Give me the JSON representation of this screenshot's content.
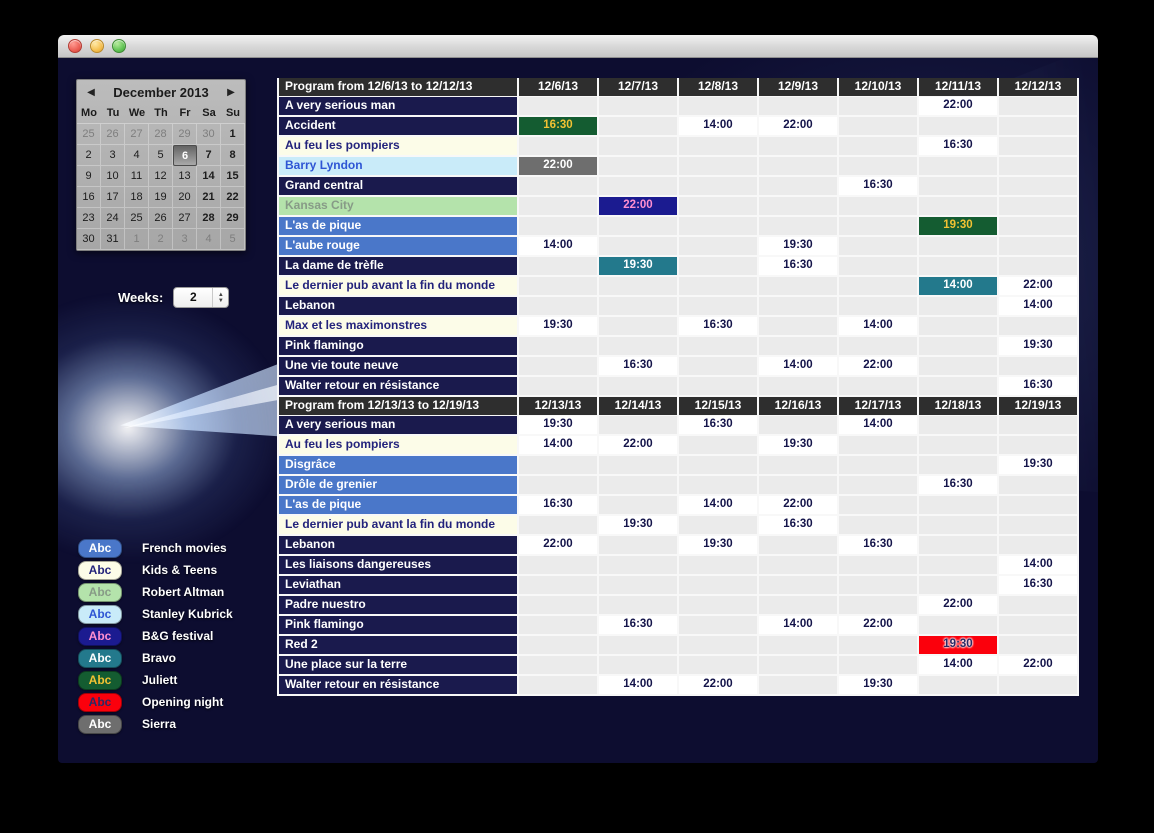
{
  "window": {
    "traffic_lights": [
      "close",
      "minimize",
      "zoom"
    ]
  },
  "calendar": {
    "title": "December 2013",
    "prev_arrow": "◀",
    "next_arrow": "▶",
    "dow": [
      "Mo",
      "Tu",
      "We",
      "Th",
      "Fr",
      "Sa",
      "Su"
    ],
    "selected_day": "6",
    "weeks": [
      [
        {
          "d": "25",
          "m": 1
        },
        {
          "d": "26",
          "m": 1
        },
        {
          "d": "27",
          "m": 1
        },
        {
          "d": "28",
          "m": 1
        },
        {
          "d": "29",
          "m": 1
        },
        {
          "d": "30",
          "m": 1
        },
        {
          "d": "1"
        }
      ],
      [
        {
          "d": "2"
        },
        {
          "d": "3"
        },
        {
          "d": "4"
        },
        {
          "d": "5"
        },
        {
          "d": "6",
          "sel": 1
        },
        {
          "d": "7"
        },
        {
          "d": "8"
        }
      ],
      [
        {
          "d": "9"
        },
        {
          "d": "10"
        },
        {
          "d": "11"
        },
        {
          "d": "12"
        },
        {
          "d": "13"
        },
        {
          "d": "14"
        },
        {
          "d": "15"
        }
      ],
      [
        {
          "d": "16"
        },
        {
          "d": "17"
        },
        {
          "d": "18"
        },
        {
          "d": "19"
        },
        {
          "d": "20"
        },
        {
          "d": "21"
        },
        {
          "d": "22"
        }
      ],
      [
        {
          "d": "23"
        },
        {
          "d": "24"
        },
        {
          "d": "25"
        },
        {
          "d": "26"
        },
        {
          "d": "27"
        },
        {
          "d": "28"
        },
        {
          "d": "29"
        }
      ],
      [
        {
          "d": "30"
        },
        {
          "d": "31"
        },
        {
          "d": "1",
          "m": 1
        },
        {
          "d": "2",
          "m": 1
        },
        {
          "d": "3",
          "m": 1
        },
        {
          "d": "4",
          "m": 1
        },
        {
          "d": "5",
          "m": 1
        }
      ]
    ]
  },
  "weeks_control": {
    "label": "Weeks:",
    "value": "2"
  },
  "categories": {
    "default": {
      "bg": "#1a1a4d",
      "fg": "#ffffff"
    },
    "french": {
      "bg": "#4a77c9",
      "fg": "#ffffff"
    },
    "kids": {
      "bg": "#fcfce8",
      "fg": "#23237c"
    },
    "altman": {
      "bg": "#b4e3ab",
      "fg": "#879b87"
    },
    "kubrick": {
      "bg": "#c9ebf9",
      "fg": "#2e55d4"
    },
    "bgfest": {
      "bg": "#1b1b90",
      "fg": "#ff8fd0"
    },
    "bravo": {
      "bg": "#23798c",
      "fg": "#ffffff"
    },
    "juliett": {
      "bg": "#145c31",
      "fg": "#f2c233"
    },
    "opening": {
      "bg": "#fb000c",
      "fg": "#2a2a66"
    },
    "sierra": {
      "bg": "#6e6e6e",
      "fg": "#ffffff"
    },
    "plain": {
      "bg": "#ffffff",
      "fg": "#14144a"
    }
  },
  "legend": [
    {
      "chip": "Abc",
      "cat": "french",
      "label": "French movies"
    },
    {
      "chip": "Abc",
      "cat": "kids",
      "label": "Kids & Teens"
    },
    {
      "chip": "Abc",
      "cat": "altman",
      "label": "Robert Altman"
    },
    {
      "chip": "Abc",
      "cat": "kubrick",
      "label": "Stanley Kubrick"
    },
    {
      "chip": "Abc",
      "cat": "bgfest",
      "label": "B&G festival"
    },
    {
      "chip": "Abc",
      "cat": "bravo",
      "label": "Bravo"
    },
    {
      "chip": "Abc",
      "cat": "juliett",
      "label": "Juliett"
    },
    {
      "chip": "Abc",
      "cat": "opening",
      "label": "Opening night"
    },
    {
      "chip": "Abc",
      "cat": "sierra",
      "label": "Sierra"
    }
  ],
  "tables": [
    {
      "title": "Program from 12/6/13 to 12/12/13",
      "columns": [
        "12/6/13",
        "12/7/13",
        "12/8/13",
        "12/9/13",
        "12/10/13",
        "12/11/13",
        "12/12/13"
      ],
      "rows": [
        {
          "label": "A very serious man",
          "cat": "default",
          "cells": [
            null,
            null,
            null,
            null,
            null,
            {
              "time": "22:00",
              "cat": "plain"
            },
            null
          ]
        },
        {
          "label": "Accident",
          "cat": "default",
          "cells": [
            {
              "time": "16:30",
              "cat": "juliett"
            },
            null,
            {
              "time": "14:00",
              "cat": "plain"
            },
            {
              "time": "22:00",
              "cat": "plain"
            },
            null,
            null,
            null
          ]
        },
        {
          "label": "Au feu les pompiers",
          "cat": "kids",
          "cells": [
            null,
            null,
            null,
            null,
            null,
            {
              "time": "16:30",
              "cat": "plain"
            },
            null
          ]
        },
        {
          "label": "Barry Lyndon",
          "cat": "kubrick",
          "cells": [
            {
              "time": "22:00",
              "cat": "sierra"
            },
            null,
            null,
            null,
            null,
            null,
            null
          ]
        },
        {
          "label": "Grand central",
          "cat": "default",
          "cells": [
            null,
            null,
            null,
            null,
            {
              "time": "16:30",
              "cat": "plain"
            },
            null,
            null
          ]
        },
        {
          "label": "Kansas City",
          "cat": "altman",
          "cells": [
            null,
            {
              "time": "22:00",
              "cat": "bgfest"
            },
            null,
            null,
            null,
            null,
            null
          ]
        },
        {
          "label": "L'as de pique",
          "cat": "french",
          "cells": [
            null,
            null,
            null,
            null,
            null,
            {
              "time": "19:30",
              "cat": "juliett"
            },
            null
          ]
        },
        {
          "label": "L'aube rouge",
          "cat": "french",
          "cells": [
            {
              "time": "14:00",
              "cat": "plain"
            },
            null,
            null,
            {
              "time": "19:30",
              "cat": "plain"
            },
            null,
            null,
            null
          ]
        },
        {
          "label": "La dame de trèfle",
          "cat": "default",
          "cells": [
            null,
            {
              "time": "19:30",
              "cat": "bravo"
            },
            null,
            {
              "time": "16:30",
              "cat": "plain"
            },
            null,
            null,
            null
          ]
        },
        {
          "label": "Le dernier pub avant la fin du monde",
          "cat": "kids",
          "cells": [
            null,
            null,
            null,
            null,
            null,
            {
              "time": "14:00",
              "cat": "bravo"
            },
            {
              "time": "22:00",
              "cat": "plain"
            }
          ]
        },
        {
          "label": "Lebanon",
          "cat": "default",
          "cells": [
            null,
            null,
            null,
            null,
            null,
            null,
            {
              "time": "14:00",
              "cat": "plain"
            }
          ]
        },
        {
          "label": "Max et les maximonstres",
          "cat": "kids",
          "cells": [
            {
              "time": "19:30",
              "cat": "plain"
            },
            null,
            {
              "time": "16:30",
              "cat": "plain"
            },
            null,
            {
              "time": "14:00",
              "cat": "plain"
            },
            null,
            null
          ]
        },
        {
          "label": "Pink flamingo",
          "cat": "default",
          "cells": [
            null,
            null,
            null,
            null,
            null,
            null,
            {
              "time": "19:30",
              "cat": "plain"
            }
          ]
        },
        {
          "label": "Une vie toute neuve",
          "cat": "default",
          "cells": [
            null,
            {
              "time": "16:30",
              "cat": "plain"
            },
            null,
            {
              "time": "14:00",
              "cat": "plain"
            },
            {
              "time": "22:00",
              "cat": "plain"
            },
            null,
            null
          ]
        },
        {
          "label": "Walter retour en résistance",
          "cat": "default",
          "cells": [
            null,
            null,
            null,
            null,
            null,
            null,
            {
              "time": "16:30",
              "cat": "plain"
            }
          ]
        }
      ]
    },
    {
      "title": "Program from 12/13/13 to 12/19/13",
      "columns": [
        "12/13/13",
        "12/14/13",
        "12/15/13",
        "12/16/13",
        "12/17/13",
        "12/18/13",
        "12/19/13"
      ],
      "rows": [
        {
          "label": "A very serious man",
          "cat": "default",
          "cells": [
            {
              "time": "19:30",
              "cat": "plain"
            },
            null,
            {
              "time": "16:30",
              "cat": "plain"
            },
            null,
            {
              "time": "14:00",
              "cat": "plain"
            },
            null,
            null
          ]
        },
        {
          "label": "Au feu les pompiers",
          "cat": "kids",
          "cells": [
            {
              "time": "14:00",
              "cat": "plain"
            },
            {
              "time": "22:00",
              "cat": "plain"
            },
            null,
            {
              "time": "19:30",
              "cat": "plain"
            },
            null,
            null,
            null
          ]
        },
        {
          "label": "Disgrâce",
          "cat": "french",
          "cells": [
            null,
            null,
            null,
            null,
            null,
            null,
            {
              "time": "19:30",
              "cat": "plain"
            }
          ]
        },
        {
          "label": "Drôle de grenier",
          "cat": "french",
          "cells": [
            null,
            null,
            null,
            null,
            null,
            {
              "time": "16:30",
              "cat": "plain"
            },
            null
          ]
        },
        {
          "label": "L'as de pique",
          "cat": "french",
          "cells": [
            {
              "time": "16:30",
              "cat": "plain"
            },
            null,
            {
              "time": "14:00",
              "cat": "plain"
            },
            {
              "time": "22:00",
              "cat": "plain"
            },
            null,
            null,
            null
          ]
        },
        {
          "label": "Le dernier pub avant la fin du monde",
          "cat": "kids",
          "cells": [
            null,
            {
              "time": "19:30",
              "cat": "plain"
            },
            null,
            {
              "time": "16:30",
              "cat": "plain"
            },
            null,
            null,
            null
          ]
        },
        {
          "label": "Lebanon",
          "cat": "default",
          "cells": [
            {
              "time": "22:00",
              "cat": "plain"
            },
            null,
            {
              "time": "19:30",
              "cat": "plain"
            },
            null,
            {
              "time": "16:30",
              "cat": "plain"
            },
            null,
            null
          ]
        },
        {
          "label": "Les liaisons dangereuses",
          "cat": "default",
          "cells": [
            null,
            null,
            null,
            null,
            null,
            null,
            {
              "time": "14:00",
              "cat": "plain"
            }
          ]
        },
        {
          "label": "Leviathan",
          "cat": "default",
          "cells": [
            null,
            null,
            null,
            null,
            null,
            null,
            {
              "time": "16:30",
              "cat": "plain"
            }
          ]
        },
        {
          "label": "Padre nuestro",
          "cat": "default",
          "cells": [
            null,
            null,
            null,
            null,
            null,
            {
              "time": "22:00",
              "cat": "plain"
            },
            null
          ]
        },
        {
          "label": "Pink flamingo",
          "cat": "default",
          "cells": [
            null,
            {
              "time": "16:30",
              "cat": "plain"
            },
            null,
            {
              "time": "14:00",
              "cat": "plain"
            },
            {
              "time": "22:00",
              "cat": "plain"
            },
            null,
            null
          ]
        },
        {
          "label": "Red 2",
          "cat": "default",
          "cells": [
            null,
            null,
            null,
            null,
            null,
            {
              "time": "19:30",
              "cat": "opening"
            },
            null
          ]
        },
        {
          "label": "Une place sur la terre",
          "cat": "default",
          "cells": [
            null,
            null,
            null,
            null,
            null,
            {
              "time": "14:00",
              "cat": "plain"
            },
            {
              "time": "22:00",
              "cat": "plain"
            }
          ]
        },
        {
          "label": "Walter retour en résistance",
          "cat": "default",
          "cells": [
            null,
            {
              "time": "14:00",
              "cat": "plain"
            },
            {
              "time": "22:00",
              "cat": "plain"
            },
            null,
            {
              "time": "19:30",
              "cat": "plain"
            },
            null,
            null
          ]
        }
      ]
    }
  ],
  "colors": {
    "content_bg": "#0d0d30",
    "table_header_bg": "#2e2e2e",
    "empty_cell_bg": "#ebebeb",
    "grid_gap": "#f8f8f8"
  }
}
